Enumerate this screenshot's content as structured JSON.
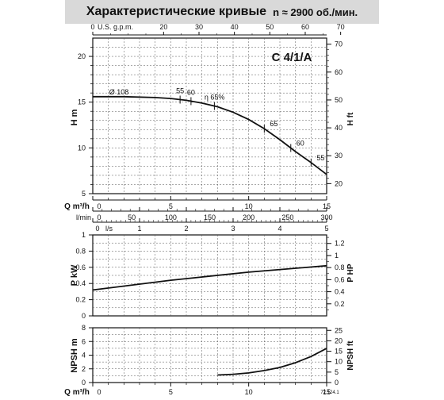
{
  "header": {
    "title": "Характеристические кривые",
    "speed": "n ≈ 2900 об./мин."
  },
  "chart_data": [
    {
      "id": "head",
      "type": "line",
      "model_label": "C 4/1/A",
      "diameter_label": "Ø 108",
      "eff_prefix": "η",
      "xlabel": "Q m³/h",
      "xlim": [
        0,
        15
      ],
      "x_ticks": [
        "0",
        "5",
        "10",
        "15"
      ],
      "ylabel_left": "H m",
      "ylim": [
        5,
        22
      ],
      "y_ticks_left": [
        "5",
        "10",
        "15",
        "20"
      ],
      "ylabel_right": "H ft",
      "y_ticks_right": [
        "20",
        "30",
        "40",
        "50",
        "60",
        "70"
      ],
      "top_axis_label": "U.S. g.p.m.",
      "top_axis_ticks": [
        "0",
        "20",
        "30",
        "40",
        "50",
        "60",
        "70"
      ],
      "series": [
        {
          "x": [
            0,
            2,
            4,
            5,
            6,
            7,
            8,
            9,
            10,
            11,
            12,
            13,
            14,
            15
          ],
          "y": [
            15.6,
            15.6,
            15.5,
            15.4,
            15.2,
            14.9,
            14.5,
            13.9,
            13.1,
            12.1,
            10.9,
            9.6,
            8.4,
            7.1
          ]
        }
      ],
      "efficiency_marks": [
        {
          "label": "55",
          "x": 5.6
        },
        {
          "label": "60",
          "x": 6.3
        },
        {
          "label": "65%",
          "x": 7.8
        },
        {
          "label": "65",
          "x": 11.0
        },
        {
          "label": "60",
          "x": 12.7
        },
        {
          "label": "55",
          "x": 14.0
        }
      ],
      "grid": true
    },
    {
      "id": "flow-scales",
      "type": "table",
      "lmin_label": "l/min",
      "lmin_ticks": [
        "0",
        "50",
        "100",
        "150",
        "200",
        "250",
        "300"
      ],
      "ls_label": "l/s",
      "ls_ticks": [
        "0",
        "1",
        "2",
        "3",
        "4",
        "5"
      ]
    },
    {
      "id": "power",
      "type": "line",
      "ylabel_left": "P kW",
      "ylim": [
        0,
        1
      ],
      "y_ticks_left": [
        "0",
        "0.2",
        "0.4",
        "0.6",
        "0.8",
        "1"
      ],
      "ylabel_right": "P HP",
      "y_ticks_right": [
        "0.2",
        "0.4",
        "0.6",
        "0.8",
        "1",
        "1.2"
      ],
      "series": [
        {
          "x": [
            0,
            5,
            10,
            15
          ],
          "y": [
            0.32,
            0.44,
            0.54,
            0.62
          ]
        }
      ],
      "grid": true
    },
    {
      "id": "npsh",
      "type": "line",
      "ylabel_left": "NPSH m",
      "ylim": [
        0,
        8
      ],
      "y_ticks_left": [
        "0",
        "2",
        "4",
        "6",
        "8"
      ],
      "ylabel_right": "NPSH ft",
      "y_ticks_right": [
        "0",
        "5",
        "10",
        "15",
        "20",
        "25"
      ],
      "xlabel": "Q m³/h",
      "xlim": [
        0,
        15
      ],
      "x_ticks": [
        "0",
        "5",
        "10",
        "15"
      ],
      "series": [
        {
          "x": [
            8,
            9,
            10,
            11,
            12,
            13,
            14,
            15
          ],
          "y": [
            1.1,
            1.2,
            1.4,
            1.75,
            2.2,
            2.9,
            3.8,
            5.0
          ]
        }
      ],
      "grid": true
    }
  ],
  "figure_code": "72.124.1"
}
